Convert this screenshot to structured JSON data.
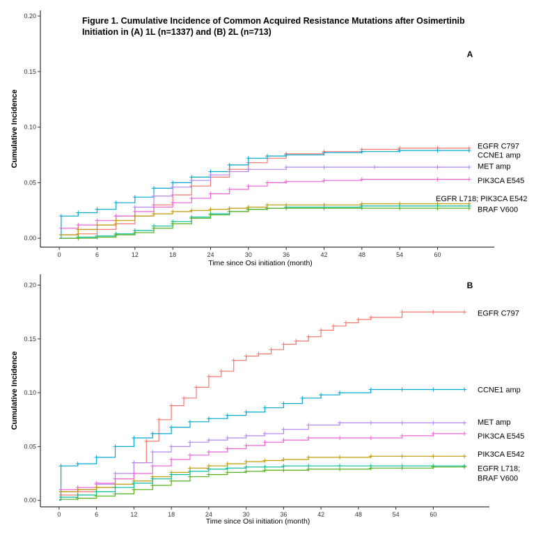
{
  "figure_title": "Figure 1. Cumulative Incidence of Common Acquired Resistance Mutations after Osimertinib Initiation in (A) 1L (n=1337) and (B) 2L (n=713)",
  "colors": {
    "EGFR C797": "#F8766D",
    "CCNE1 amp": "#00A9D6",
    "MET amp": "#B186F0",
    "PIK3CA E545": "#EE63D8",
    "PIK3CA E542": "#BF9A00",
    "EGFR L718": "#00BE9A",
    "BRAF V600": "#56B01B"
  },
  "chart_data": [
    {
      "panel": "A",
      "type": "line",
      "step": true,
      "xlabel": "Time since Osi initiation (month)",
      "ylabel": "Cumulative Incidence",
      "xticks": [
        0,
        6,
        12,
        18,
        24,
        30,
        36,
        42,
        48,
        54,
        60
      ],
      "yticks": [
        0.0,
        0.05,
        0.1,
        0.15,
        0.2
      ],
      "ytick_labels": [
        "0.00",
        "0.05",
        "0.10",
        "0.15",
        "0.20"
      ],
      "xlim": [
        -3,
        69
      ],
      "ylim": [
        -0.008,
        0.205
      ],
      "series": [
        {
          "name": "EGFR C797",
          "x": [
            0,
            3,
            6,
            9,
            12,
            15,
            18,
            21,
            24,
            27,
            30,
            33,
            36,
            42,
            48,
            54,
            60,
            65
          ],
          "y": [
            0.0,
            0.004,
            0.008,
            0.013,
            0.02,
            0.03,
            0.039,
            0.047,
            0.055,
            0.062,
            0.068,
            0.072,
            0.076,
            0.078,
            0.08,
            0.081,
            0.081,
            0.081
          ]
        },
        {
          "name": "CCNE1 amp",
          "x": [
            0,
            0.3,
            3,
            6,
            9,
            12,
            15,
            18,
            21,
            24,
            27,
            30,
            33,
            36,
            42,
            48,
            54,
            60,
            65
          ],
          "y": [
            0.0,
            0.02,
            0.023,
            0.026,
            0.032,
            0.037,
            0.045,
            0.05,
            0.055,
            0.06,
            0.066,
            0.072,
            0.074,
            0.075,
            0.077,
            0.078,
            0.079,
            0.079,
            0.079
          ]
        },
        {
          "name": "MET amp",
          "x": [
            0,
            3,
            6,
            9,
            12,
            15,
            18,
            21,
            24,
            27,
            30,
            36,
            42,
            50,
            60,
            65
          ],
          "y": [
            0.003,
            0.008,
            0.012,
            0.02,
            0.028,
            0.038,
            0.046,
            0.052,
            0.057,
            0.06,
            0.062,
            0.064,
            0.064,
            0.064,
            0.064,
            0.064
          ]
        },
        {
          "name": "PIK3CA E545",
          "x": [
            0,
            3,
            6,
            9,
            12,
            15,
            18,
            21,
            24,
            27,
            30,
            33,
            36,
            42,
            48,
            60,
            65
          ],
          "y": [
            0.009,
            0.012,
            0.016,
            0.02,
            0.024,
            0.028,
            0.032,
            0.036,
            0.04,
            0.044,
            0.047,
            0.05,
            0.051,
            0.052,
            0.053,
            0.053,
            0.053
          ]
        },
        {
          "name": "PIK3CA E542",
          "x": [
            0,
            3,
            6,
            9,
            12,
            15,
            18,
            21,
            24,
            27,
            30,
            33,
            36,
            42,
            48,
            54,
            60,
            65
          ],
          "y": [
            0.003,
            0.008,
            0.012,
            0.016,
            0.02,
            0.022,
            0.024,
            0.025,
            0.026,
            0.027,
            0.028,
            0.03,
            0.03,
            0.03,
            0.031,
            0.031,
            0.031,
            0.031
          ]
        },
        {
          "name": "EGFR L718",
          "x": [
            0,
            3,
            6,
            9,
            12,
            15,
            18,
            21,
            24,
            27,
            30,
            33,
            36,
            42,
            48,
            54,
            60,
            65
          ],
          "y": [
            0.0,
            0.001,
            0.002,
            0.004,
            0.007,
            0.011,
            0.015,
            0.019,
            0.022,
            0.024,
            0.026,
            0.027,
            0.028,
            0.028,
            0.029,
            0.029,
            0.029,
            0.029
          ]
        },
        {
          "name": "BRAF V600",
          "x": [
            0,
            3,
            6,
            9,
            12,
            15,
            18,
            21,
            24,
            27,
            30,
            33,
            36,
            42,
            48,
            54,
            60,
            65
          ],
          "y": [
            0.0,
            0.0,
            0.001,
            0.003,
            0.005,
            0.009,
            0.013,
            0.018,
            0.021,
            0.024,
            0.026,
            0.027,
            0.027,
            0.027,
            0.027,
            0.027,
            0.027,
            0.027
          ]
        }
      ],
      "end_labels": [
        {
          "text": "EGFR C797",
          "y": 0.083
        },
        {
          "text": "CCNE1 amp",
          "y": 0.075
        },
        {
          "text": "MET amp",
          "y": 0.065
        },
        {
          "text": "PIK3CA E545",
          "y": 0.052
        },
        {
          "text": "EGFR L718; PIK3CA E542",
          "y": 0.036
        },
        {
          "text": "BRAF V600",
          "y": 0.026
        }
      ]
    },
    {
      "panel": "B",
      "type": "line",
      "step": true,
      "xlabel": "Time since Osi initiation (month)",
      "ylabel": "Cumulative Incidence",
      "xticks": [
        0,
        6,
        12,
        18,
        24,
        30,
        36,
        42,
        48,
        54,
        60
      ],
      "yticks": [
        0.0,
        0.05,
        0.1,
        0.15,
        0.2
      ],
      "ytick_labels": [
        "0.00",
        "0.05",
        "0.10",
        "0.15",
        "0.20"
      ],
      "xlim": [
        -3,
        69
      ],
      "ylim": [
        -0.006,
        0.21
      ],
      "series": [
        {
          "name": "EGFR C797",
          "x": [
            0,
            3,
            6,
            9,
            12,
            14,
            16,
            18,
            20,
            22,
            24,
            26,
            28,
            30,
            32,
            34,
            36,
            38,
            40,
            42,
            44,
            46,
            48,
            50,
            55,
            60,
            65
          ],
          "y": [
            0.005,
            0.008,
            0.012,
            0.02,
            0.035,
            0.055,
            0.075,
            0.088,
            0.095,
            0.105,
            0.115,
            0.12,
            0.13,
            0.134,
            0.136,
            0.14,
            0.145,
            0.148,
            0.152,
            0.158,
            0.162,
            0.165,
            0.168,
            0.17,
            0.175,
            0.175,
            0.175
          ]
        },
        {
          "name": "CCNE1 amp",
          "x": [
            0,
            0.3,
            3,
            6,
            9,
            12,
            15,
            18,
            21,
            24,
            27,
            30,
            33,
            36,
            39,
            42,
            45,
            50,
            55,
            60,
            65
          ],
          "y": [
            0.0,
            0.032,
            0.034,
            0.04,
            0.05,
            0.058,
            0.062,
            0.068,
            0.073,
            0.076,
            0.079,
            0.082,
            0.086,
            0.09,
            0.095,
            0.098,
            0.1,
            0.103,
            0.103,
            0.103,
            0.103
          ]
        },
        {
          "name": "MET amp",
          "x": [
            0,
            3,
            6,
            9,
            12,
            15,
            18,
            21,
            24,
            27,
            30,
            33,
            36,
            40,
            45,
            50,
            55,
            60,
            65
          ],
          "y": [
            0.008,
            0.01,
            0.015,
            0.025,
            0.035,
            0.045,
            0.05,
            0.054,
            0.056,
            0.058,
            0.06,
            0.062,
            0.066,
            0.07,
            0.072,
            0.072,
            0.072,
            0.072,
            0.072
          ]
        },
        {
          "name": "PIK3CA E545",
          "x": [
            0,
            3,
            6,
            9,
            12,
            15,
            18,
            21,
            24,
            27,
            30,
            33,
            36,
            40,
            45,
            50,
            55,
            60,
            65
          ],
          "y": [
            0.01,
            0.012,
            0.016,
            0.02,
            0.025,
            0.032,
            0.038,
            0.042,
            0.045,
            0.048,
            0.051,
            0.054,
            0.056,
            0.058,
            0.058,
            0.058,
            0.06,
            0.062,
            0.062
          ]
        },
        {
          "name": "PIK3CA E542",
          "x": [
            0,
            3,
            6,
            9,
            12,
            15,
            18,
            21,
            24,
            27,
            30,
            33,
            36,
            40,
            45,
            50,
            55,
            60,
            65
          ],
          "y": [
            0.008,
            0.01,
            0.012,
            0.015,
            0.018,
            0.022,
            0.026,
            0.03,
            0.032,
            0.034,
            0.036,
            0.037,
            0.038,
            0.04,
            0.04,
            0.041,
            0.041,
            0.041,
            0.041
          ]
        },
        {
          "name": "EGFR L718",
          "x": [
            0,
            3,
            6,
            9,
            12,
            15,
            18,
            21,
            24,
            27,
            30,
            33,
            36,
            40,
            45,
            50,
            55,
            60,
            65
          ],
          "y": [
            0.003,
            0.005,
            0.008,
            0.012,
            0.016,
            0.02,
            0.024,
            0.027,
            0.029,
            0.03,
            0.031,
            0.031,
            0.032,
            0.032,
            0.032,
            0.032,
            0.032,
            0.032,
            0.032
          ]
        },
        {
          "name": "BRAF V600",
          "x": [
            0,
            3,
            6,
            9,
            12,
            15,
            18,
            21,
            24,
            27,
            30,
            33,
            36,
            40,
            45,
            50,
            55,
            60,
            65
          ],
          "y": [
            0.001,
            0.002,
            0.004,
            0.006,
            0.01,
            0.014,
            0.018,
            0.022,
            0.024,
            0.026,
            0.027,
            0.028,
            0.028,
            0.029,
            0.029,
            0.03,
            0.03,
            0.031,
            0.031
          ]
        }
      ],
      "end_labels": [
        {
          "text": "EGFR C797",
          "y": 0.174
        },
        {
          "text": "CCNE1 amp",
          "y": 0.103
        },
        {
          "text": "MET amp",
          "y": 0.073
        },
        {
          "text": "PIK3CA E545",
          "y": 0.06
        },
        {
          "text": "PIK3CA E542",
          "y": 0.043
        },
        {
          "text": "EGFR L718;",
          "y": 0.03
        },
        {
          "text": "BRAF V600",
          "y": 0.021
        }
      ]
    }
  ]
}
